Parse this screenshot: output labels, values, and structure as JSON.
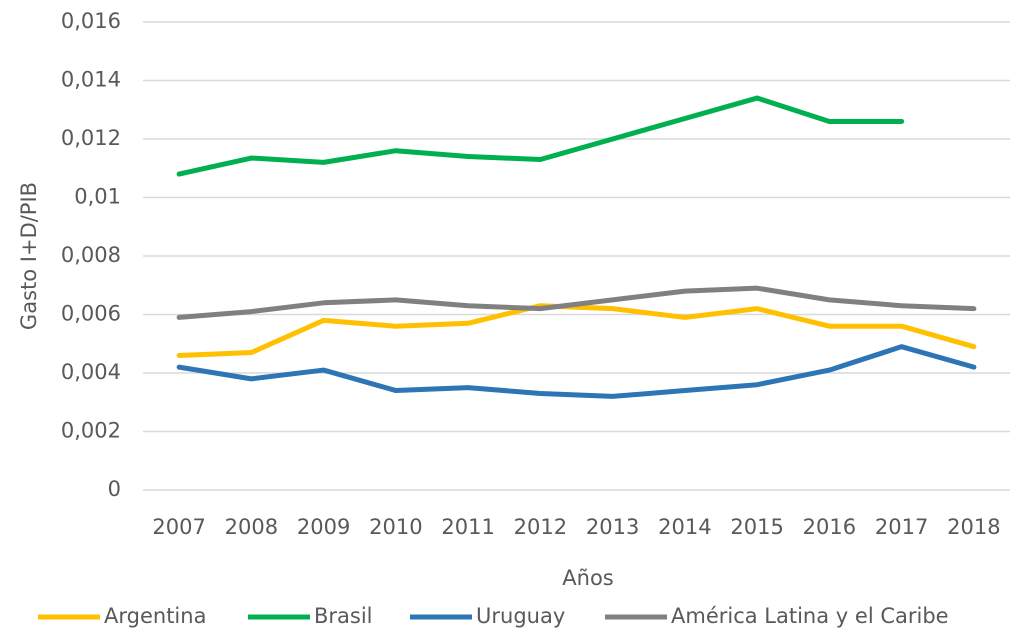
{
  "chart_data": {
    "type": "line",
    "y_label": "Gasto I+D/PIB",
    "x_label": "Años",
    "categories": [
      "2007",
      "2008",
      "2009",
      "2010",
      "2011",
      "2012",
      "2013",
      "2014",
      "2015",
      "2016",
      "2017",
      "2018"
    ],
    "series": [
      {
        "name": "Argentina",
        "color": "#ffc000",
        "values": [
          0.0046,
          0.0047,
          0.0058,
          0.0056,
          0.0057,
          0.0063,
          0.0062,
          0.0059,
          0.0062,
          0.0056,
          0.0056,
          0.0049
        ]
      },
      {
        "name": "Brasil",
        "color": "#00b050",
        "values": [
          0.0108,
          0.01135,
          0.0112,
          0.0116,
          0.0114,
          0.0113,
          0.012,
          0.0127,
          0.0134,
          0.0126,
          0.0126,
          null
        ]
      },
      {
        "name": "Uruguay",
        "color": "#2e75b6",
        "values": [
          0.0042,
          0.0038,
          0.0041,
          0.0034,
          0.0035,
          0.0033,
          0.0032,
          0.0034,
          0.0036,
          0.0041,
          0.0049,
          0.0042
        ]
      },
      {
        "name": "América Latina y el Caribe",
        "color": "#808080",
        "values": [
          0.0059,
          0.0061,
          0.0064,
          0.0065,
          0.0063,
          0.0062,
          0.0065,
          0.0068,
          0.0069,
          0.0065,
          0.0063,
          0.0062
        ]
      }
    ],
    "ylim": [
      0,
      0.016
    ],
    "yticks": [
      0,
      {
        "value": 0.002,
        "label": "0,002"
      },
      {
        "value": 0.004,
        "label": "0,004"
      },
      {
        "value": 0.006,
        "label": "0,006"
      },
      {
        "value": 0.008,
        "label": "0,008"
      },
      {
        "value": 0.01,
        "label": "0,01"
      },
      {
        "value": 0.012,
        "label": "0,012"
      },
      {
        "value": 0.014,
        "label": "0,014"
      },
      {
        "value": 0.016,
        "label": "0,016"
      }
    ],
    "grid": true,
    "legend": "bottom"
  }
}
